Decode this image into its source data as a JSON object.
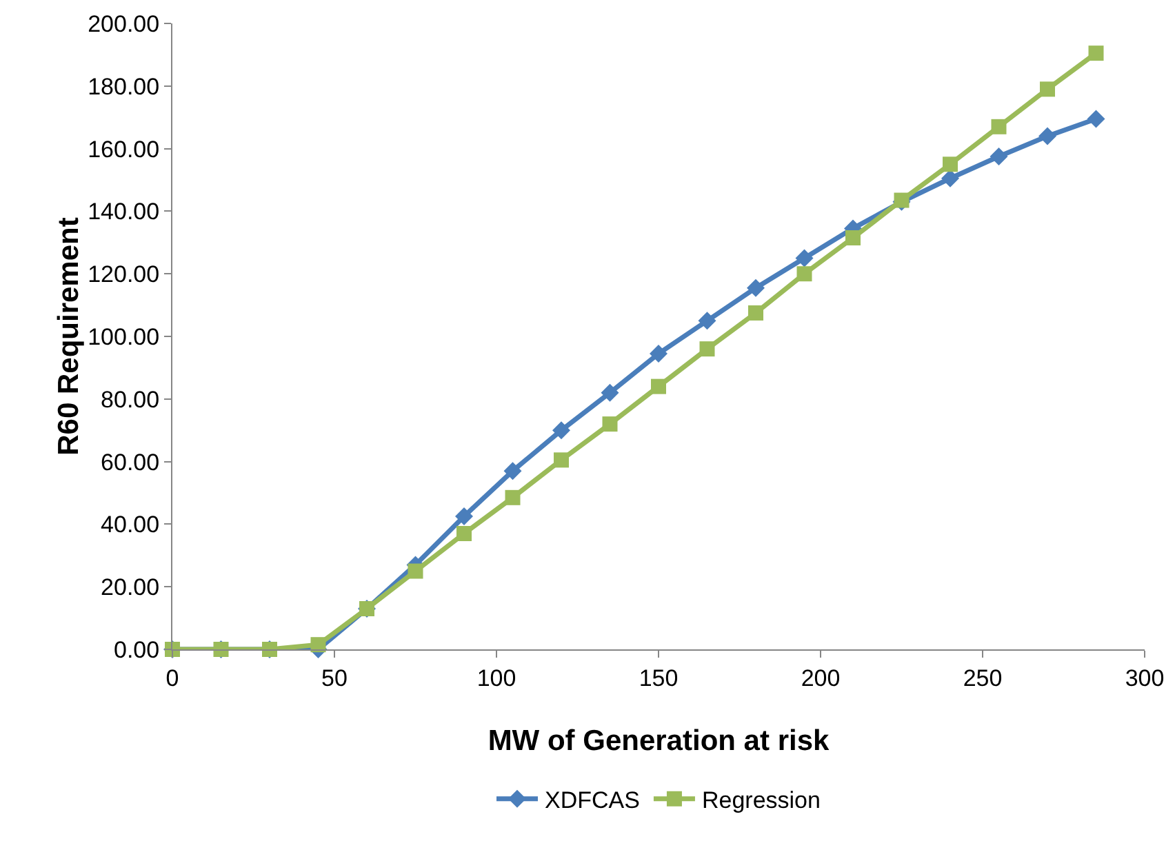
{
  "chart_data": {
    "type": "line",
    "xlabel": "MW of Generation at risk",
    "ylabel": "R60 Requirement",
    "x": [
      0,
      15,
      30,
      45,
      60,
      75,
      90,
      105,
      120,
      135,
      150,
      165,
      180,
      195,
      210,
      225,
      240,
      255,
      270,
      285
    ],
    "series": [
      {
        "name": "XDFCAS",
        "color": "#4a7ebb",
        "marker": "diamond",
        "values": [
          0,
          0,
          0,
          0,
          13,
          27,
          42.5,
          57,
          70,
          82,
          94.5,
          105,
          115.5,
          125,
          134.5,
          143,
          150.5,
          157.5,
          164,
          169.5
        ]
      },
      {
        "name": "Regression",
        "color": "#9bbb59",
        "marker": "square",
        "values": [
          0,
          0,
          0,
          1.5,
          13,
          25,
          37,
          48.5,
          60.5,
          72,
          84,
          96,
          107.5,
          120,
          131.5,
          143.5,
          155,
          167,
          179,
          190.5
        ]
      }
    ],
    "xlim": [
      0,
      300
    ],
    "xticks": [
      0,
      50,
      100,
      150,
      200,
      250,
      300
    ],
    "ylim": [
      0,
      200
    ],
    "yticks": [
      {
        "value": 0,
        "label": "0.00"
      },
      {
        "value": 20,
        "label": "20.00"
      },
      {
        "value": 40,
        "label": "40.00"
      },
      {
        "value": 60,
        "label": "60.00"
      },
      {
        "value": 80,
        "label": "80.00"
      },
      {
        "value": 100,
        "label": "100.00"
      },
      {
        "value": 120,
        "label": "120.00"
      },
      {
        "value": 140,
        "label": "140.00"
      },
      {
        "value": 160,
        "label": "160.00"
      },
      {
        "value": 180,
        "label": "180.00"
      },
      {
        "value": 200,
        "label": "200.00"
      }
    ],
    "grid": false,
    "legend": "bottom",
    "line_style": "solid"
  }
}
